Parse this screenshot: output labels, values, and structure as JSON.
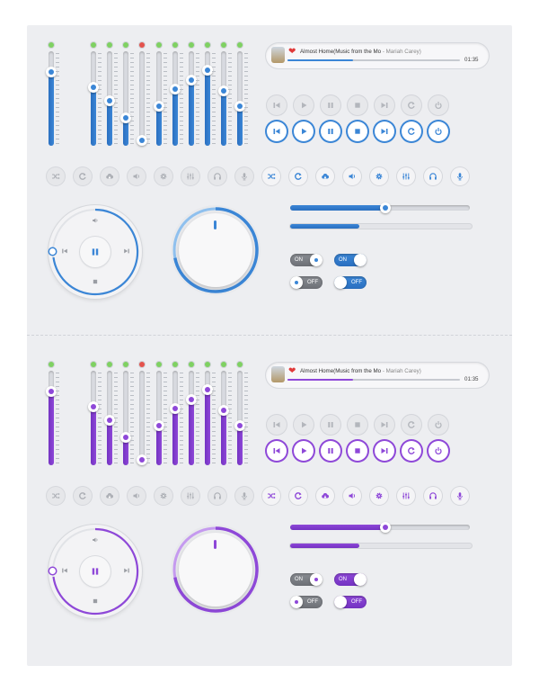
{
  "themes": [
    {
      "id": "blue",
      "accent": "#3b86d6",
      "accent_dark": "#2a6fc0",
      "accent_light": "#8fc0ee"
    },
    {
      "id": "purple",
      "accent": "#8e48d8",
      "accent_dark": "#7432c2",
      "accent_light": "#c59aef"
    }
  ],
  "mixer": {
    "sliders": [
      {
        "led": "green",
        "level": 0.78
      },
      {
        "led": "green",
        "level": 0.62
      },
      {
        "led": "green",
        "level": 0.48
      },
      {
        "led": "green",
        "level": 0.3
      },
      {
        "led": "red",
        "level": 0.06
      },
      {
        "led": "green",
        "level": 0.42
      },
      {
        "led": "green",
        "level": 0.6
      },
      {
        "led": "green",
        "level": 0.7
      },
      {
        "led": "green",
        "level": 0.8
      },
      {
        "led": "green",
        "level": 0.58
      },
      {
        "led": "green",
        "level": 0.42
      }
    ]
  },
  "player": {
    "title": "Almost Home(Music from the Mo",
    "separator": " - ",
    "artist": "Mariah Carey)",
    "time": "01:35",
    "progress": 0.38,
    "favorite_icon": "heart-icon"
  },
  "transport_icons": [
    "previous-icon",
    "play-icon",
    "pause-icon",
    "stop-icon",
    "next-icon",
    "repeat-icon",
    "power-icon"
  ],
  "small_icons": [
    "shuffle-icon",
    "repeat-icon",
    "cloud-icon",
    "volume-icon",
    "gear-icon",
    "equalizer-icon",
    "headphones-icon",
    "microphone-icon"
  ],
  "wheel": {
    "center_icon": "pause-icon",
    "glyphs": [
      "volume-icon",
      "previous-icon",
      "next-icon",
      "stop-icon"
    ]
  },
  "volume_knob": {
    "level": 0.72
  },
  "seek_slider": {
    "value": 0.53
  },
  "progress_bar": {
    "value": 0.38
  },
  "toggles": {
    "on_label": "ON",
    "off_label": "OFF"
  }
}
